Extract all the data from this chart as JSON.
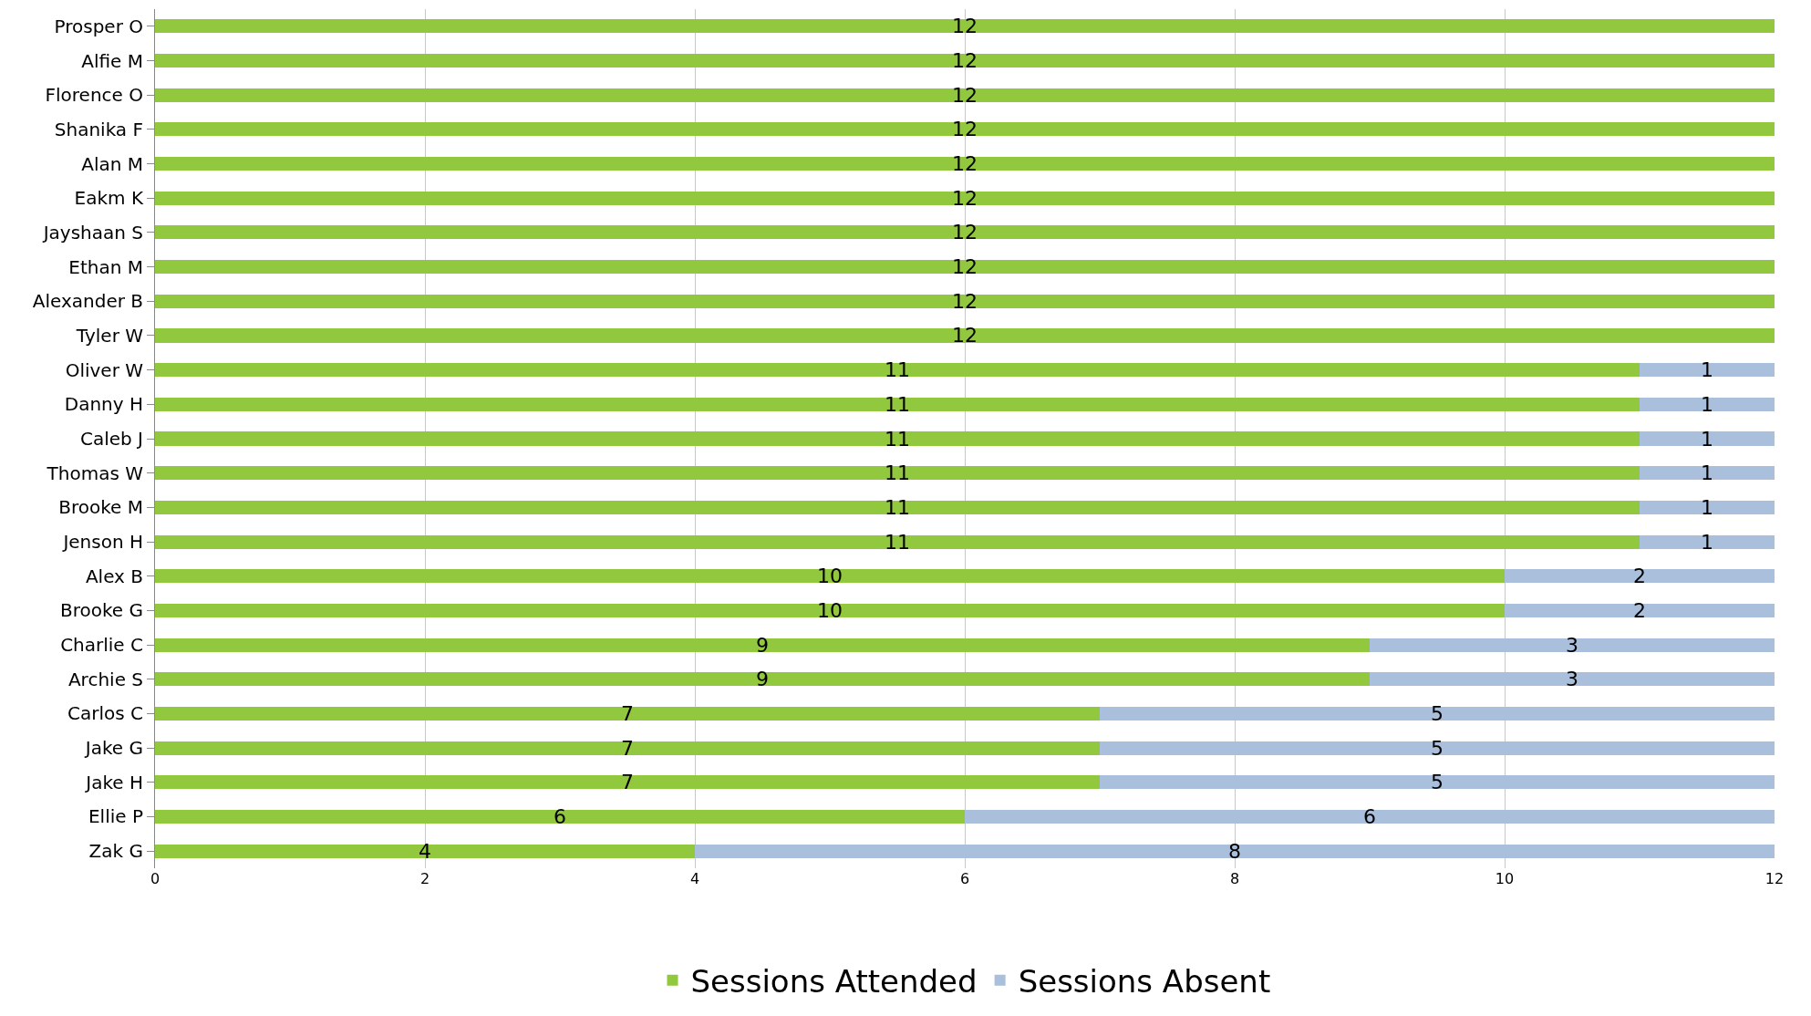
{
  "chart_data": {
    "type": "bar",
    "orientation": "horizontal",
    "stacked": true,
    "categories": [
      "Prosper O",
      "Alfie M",
      "Florence O",
      "Shanika F",
      "Alan M",
      "Eakm K",
      "Jayshaan S",
      "Ethan M",
      "Alexander B",
      "Tyler W",
      "Oliver W",
      "Danny H",
      "Caleb J",
      "Thomas W",
      "Brooke M",
      "Jenson H",
      "Alex B",
      "Brooke G",
      "Charlie C",
      "Archie S",
      "Carlos C",
      "Jake G",
      "Jake H",
      "Ellie P",
      "Zak G"
    ],
    "series": [
      {
        "name": "Sessions Attended",
        "color": "#92c83e",
        "values": [
          12,
          12,
          12,
          12,
          12,
          12,
          12,
          12,
          12,
          12,
          11,
          11,
          11,
          11,
          11,
          11,
          10,
          10,
          9,
          9,
          7,
          7,
          7,
          6,
          4
        ]
      },
      {
        "name": "Sessions Absent",
        "color": "#a9bfdc",
        "values": [
          null,
          null,
          null,
          null,
          null,
          null,
          null,
          null,
          null,
          null,
          1,
          1,
          1,
          1,
          1,
          1,
          2,
          2,
          3,
          3,
          5,
          5,
          5,
          6,
          8
        ]
      }
    ],
    "xlim": [
      0,
      12
    ],
    "xticks": [
      0,
      2,
      4,
      6,
      8,
      10,
      12
    ],
    "grid": "x",
    "legend": "bottom",
    "data_labels": true
  }
}
